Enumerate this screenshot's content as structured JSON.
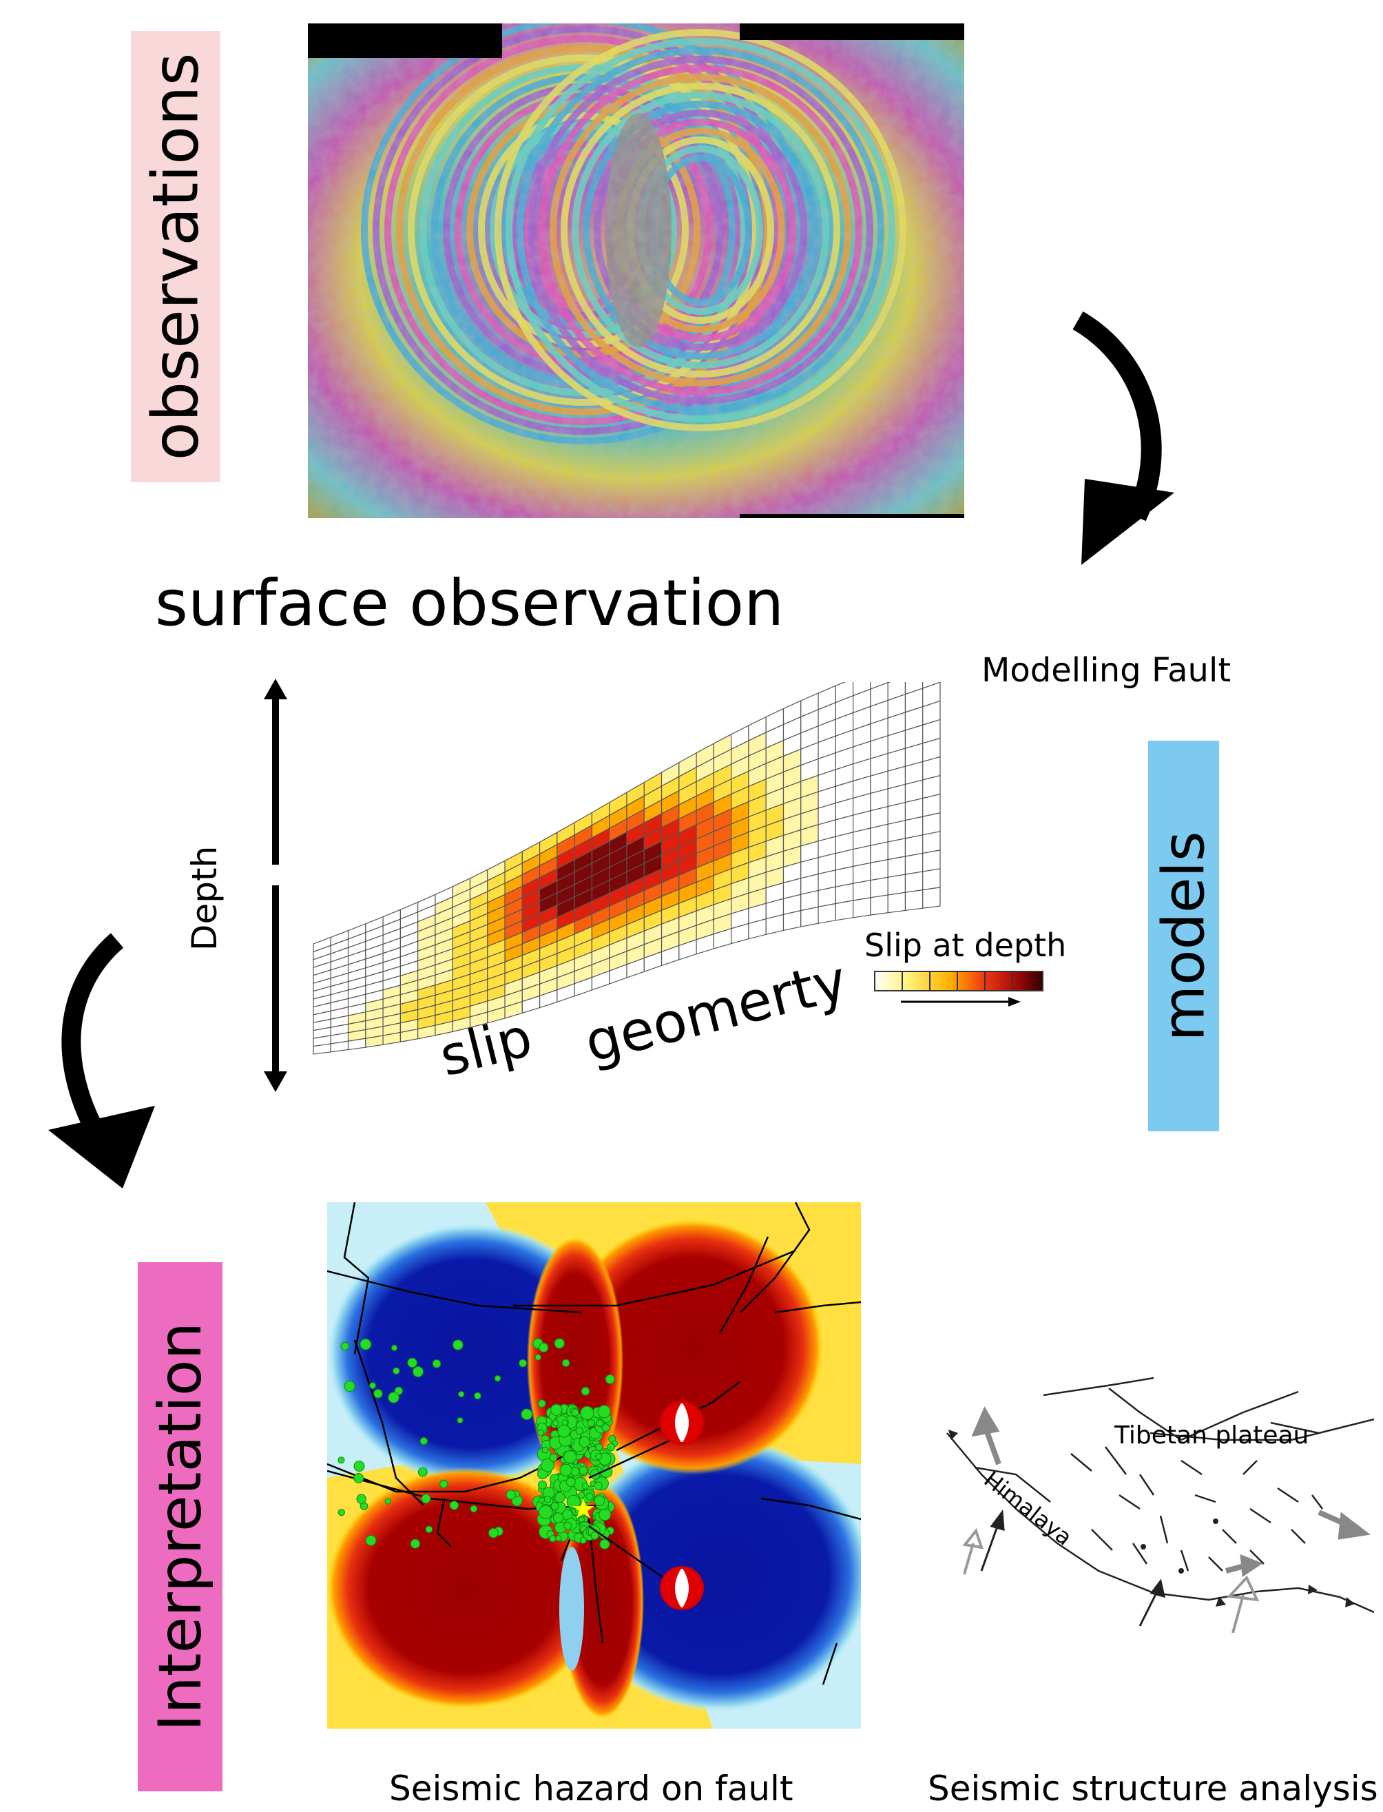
{
  "labels": {
    "observations": "observations",
    "models": "models",
    "interpretation": "Interpretation"
  },
  "texts": {
    "surface_observation": "surface observation",
    "modelling_fault": "Modelling Fault",
    "depth": "Depth",
    "slip": "slip",
    "geometry": "geomerty",
    "slip_at_depth": "Slip at depth",
    "seismic_hazard": "Seismic hazard on fault",
    "seismic_structure": "Seismic structure analysis",
    "tibetan_plateau": "Tibetan plateau",
    "himalaya": "Himalaya"
  },
  "colors": {
    "observations_bg": "#f8d8d8",
    "models_bg": "#7ccaf0",
    "interpretation_bg": "#ee6cc0",
    "slip_low": "#fff7b0",
    "slip_mid": "#ff9900",
    "slip_high": "#e82a10",
    "slip_max": "#5a0a0a",
    "stress_positive": "#a80000",
    "stress_negative": "#0a1aa8",
    "aftershock": "#22dd22"
  }
}
